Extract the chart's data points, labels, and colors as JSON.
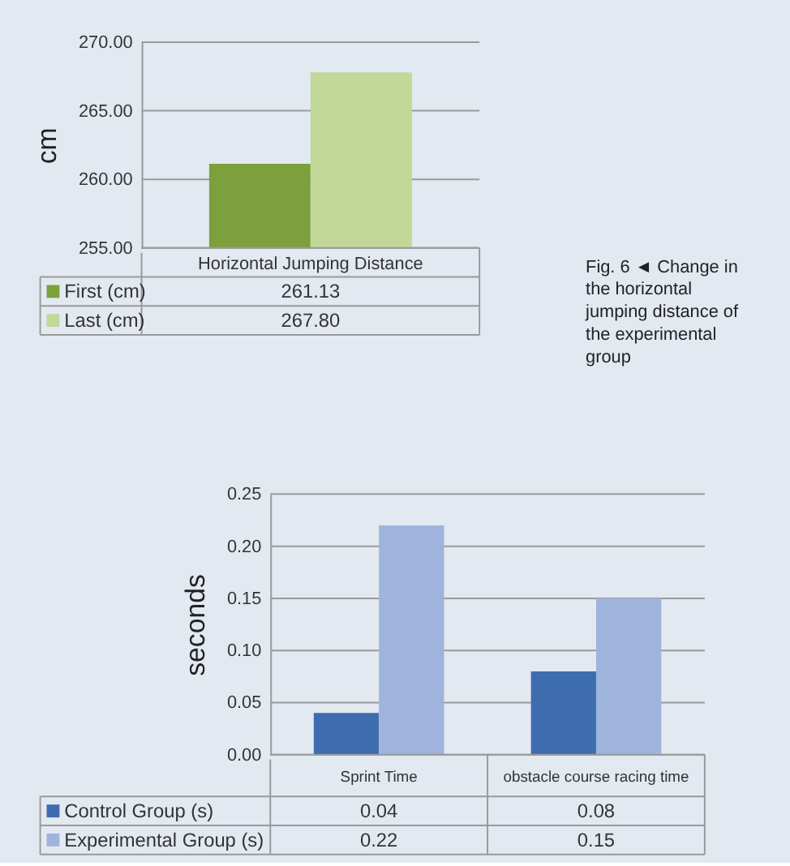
{
  "chart_data": [
    {
      "type": "bar",
      "ylabel": "cm",
      "categories": [
        "Horizontal Jumping Distance"
      ],
      "series": [
        {
          "name": "First (cm)",
          "color": "#7ca03c",
          "values": [
            261.13
          ],
          "value_labels": [
            "261.13"
          ]
        },
        {
          "name": "Last (cm)",
          "color": "#c2d898",
          "values": [
            267.8
          ],
          "value_labels": [
            "267.80"
          ]
        }
      ],
      "ylim": [
        255,
        270
      ],
      "yticks": [
        {
          "value": 255,
          "label": "255.00"
        },
        {
          "value": 260,
          "label": "260.00"
        },
        {
          "value": 265,
          "label": "265.00"
        },
        {
          "value": 270,
          "label": "270.00"
        }
      ],
      "grid": "y",
      "legend": "bottom",
      "annotations": [
        "Fig. 6 ◄ Change in the horizontal jumping distance of the experimental group"
      ]
    },
    {
      "type": "bar",
      "ylabel": "seconds",
      "categories": [
        "Sprint Time",
        "obstacle course racing time"
      ],
      "series": [
        {
          "name": "Control Group (s)",
          "color": "#3e6daf",
          "values": [
            0.04,
            0.08
          ],
          "value_labels": [
            "0.04",
            "0.08"
          ]
        },
        {
          "name": "Experimental Group (s)",
          "color": "#9fb4dc",
          "values": [
            0.22,
            0.15
          ],
          "value_labels": [
            "0.22",
            "0.15"
          ]
        }
      ],
      "ylim": [
        0,
        0.25
      ],
      "yticks": [
        {
          "value": 0,
          "label": "0.00"
        },
        0.05,
        {
          "value": 0.1,
          "label": "0.10"
        },
        0.15,
        {
          "value": 0.2,
          "label": "0.20"
        },
        0.25
      ],
      "grid": "y",
      "legend": "bottom"
    }
  ]
}
